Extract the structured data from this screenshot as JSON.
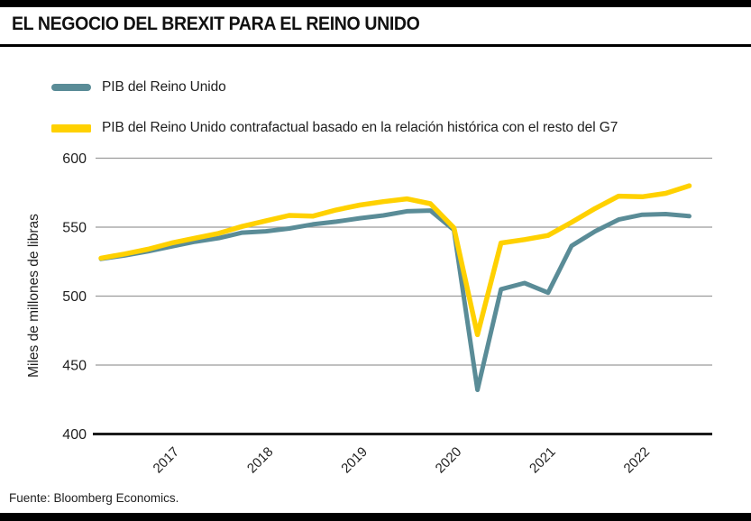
{
  "header": {
    "title": "EL NEGOCIO DEL BREXIT PARA EL REINO UNIDO"
  },
  "legend": [
    {
      "label": "PIB del Reino Unido",
      "color": "#5A8C97"
    },
    {
      "label": "PIB del Reino Unido contrafactual basado en la relación histórica con el resto del G7",
      "color": "#FFD100"
    }
  ],
  "footer": {
    "source": "Fuente: Bloomberg Economics."
  },
  "chart_data": {
    "type": "line",
    "title": "EL NEGOCIO DEL BREXIT PARA EL REINO UNIDO",
    "xlabel": "",
    "ylabel": "Miles de millones de libras",
    "ylim": [
      400,
      600
    ],
    "yticks": [
      400,
      450,
      500,
      550,
      600
    ],
    "xtick_labels": [
      "2017",
      "2018",
      "2019",
      "2020",
      "2021",
      "2022"
    ],
    "x": [
      "2016Q2",
      "2016Q3",
      "2016Q4",
      "2017Q1",
      "2017Q2",
      "2017Q3",
      "2017Q4",
      "2018Q1",
      "2018Q2",
      "2018Q3",
      "2018Q4",
      "2019Q1",
      "2019Q2",
      "2019Q3",
      "2019Q4",
      "2020Q1",
      "2020Q2",
      "2020Q3",
      "2020Q4",
      "2021Q1",
      "2021Q2",
      "2021Q3",
      "2021Q4",
      "2022Q1",
      "2022Q2",
      "2022Q3"
    ],
    "grid": true,
    "legend_position": "top-left",
    "axis_colors": {
      "gridline": "#9b9b9b",
      "baseline": "#1a1a1a",
      "tick_text": "#1f1f1f"
    },
    "series": [
      {
        "name": "PIB del Reino Unido",
        "color": "#5A8C97",
        "values": [
          527,
          529.5,
          532.5,
          536,
          539.5,
          542,
          546,
          547,
          549,
          552,
          554,
          556.5,
          558.5,
          561.5,
          562,
          548,
          432,
          505,
          509.5,
          502.5,
          536.5,
          547,
          555.5,
          559,
          559.5,
          558
        ]
      },
      {
        "name": "PIB del Reino Unido contrafactual basado en la relación histórica con el resto del G7",
        "color": "#FFD100",
        "values": [
          527.5,
          530.5,
          534,
          538.5,
          542,
          545.5,
          550.5,
          554.5,
          558.5,
          558,
          562.5,
          566,
          568.5,
          570.5,
          567,
          549.5,
          472,
          538.5,
          541,
          544,
          553.5,
          563.5,
          572.5,
          572,
          574.5,
          580
        ]
      }
    ]
  }
}
